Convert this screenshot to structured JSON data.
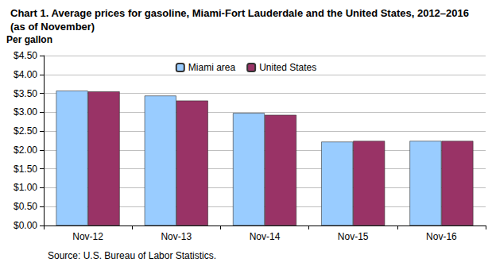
{
  "chart_data": {
    "type": "bar",
    "title": "Chart 1. Average prices for gasoline, Miami-Fort Lauderdale and the United States, 2012–2016 (as of November)",
    "y_label": "Per gallon",
    "source": "Source: U.S. Bureau of Labor Statistics.",
    "categories": [
      "Nov-12",
      "Nov-13",
      "Nov-14",
      "Nov-15",
      "Nov-16"
    ],
    "series": [
      {
        "name": "Miami area",
        "color": "#99ccff",
        "values": [
          3.57,
          3.44,
          2.98,
          2.22,
          2.24
        ]
      },
      {
        "name": "United States",
        "color": "#993366",
        "values": [
          3.55,
          3.31,
          2.93,
          2.24,
          2.24
        ]
      }
    ],
    "ylim": [
      0,
      4.5
    ],
    "yticks": [
      {
        "value": 0,
        "label": "$0.00"
      },
      {
        "value": 0.5,
        "label": "$0.50"
      },
      {
        "value": 1,
        "label": "$1.00"
      },
      {
        "value": 1.5,
        "label": "$1.50"
      },
      {
        "value": 2,
        "label": "$2.00"
      },
      {
        "value": 2.5,
        "label": "$2.50"
      },
      {
        "value": 3,
        "label": "$3.00"
      },
      {
        "value": 3.5,
        "label": "$3.50"
      },
      {
        "value": 4,
        "label": "$4.00"
      },
      {
        "value": 4.5,
        "label": "$4.50"
      }
    ],
    "grid": true,
    "legend": "top"
  }
}
